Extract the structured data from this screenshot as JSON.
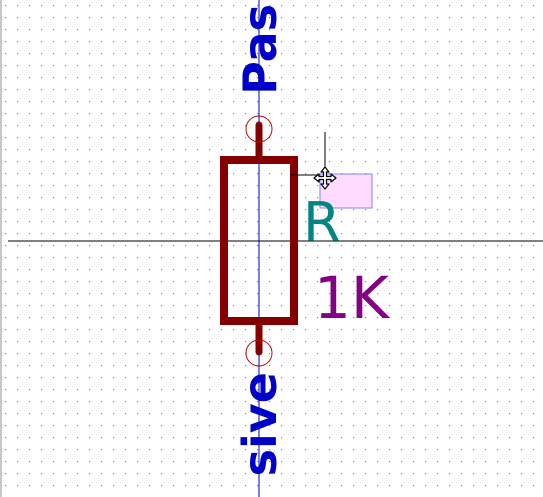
{
  "canvas": {
    "background": "#ffffff",
    "grid_color": "#8c8c8c",
    "axis_color": "#000000",
    "border_color": "#c8c8c8"
  },
  "component": {
    "reference": "R",
    "value": "1K",
    "body_color": "#840000",
    "pin_line_color": "#0000c8",
    "reference_color": "#008484",
    "value_color": "#840084",
    "pins": {
      "top_label": "Pas",
      "bottom_label": "sive",
      "label_color": "#0000c8",
      "marker_color": "#c80000"
    }
  },
  "cursor": {
    "icon": "move-cursor-icon",
    "highlight_fill": "#ffdcff",
    "highlight_stroke": "#8080ff"
  }
}
